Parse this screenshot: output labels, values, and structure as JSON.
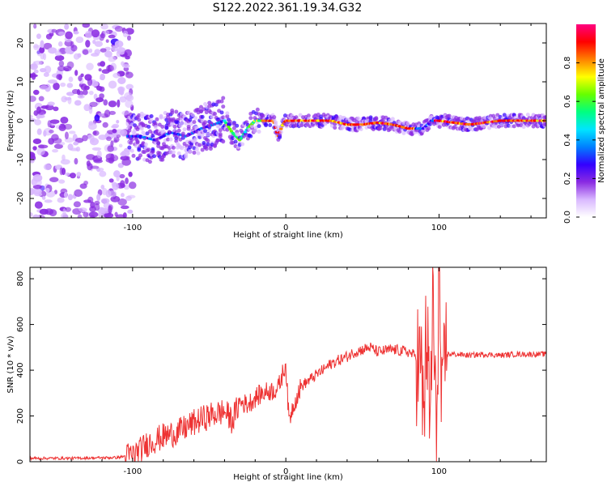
{
  "title": "S122.2022.361.19.34.G32",
  "chart_data": [
    {
      "type": "heatmap",
      "xlabel": "Height of straight line (km)",
      "ylabel": "Frequency (Hz)",
      "xlim": [
        -167,
        170
      ],
      "ylim": [
        -25,
        25
      ],
      "xticks": [
        -100,
        0,
        100
      ],
      "yticks": [
        -20,
        -10,
        0,
        10,
        20
      ],
      "colorbar": {
        "label": "Normalized spectral amplitude",
        "range": [
          0,
          1
        ],
        "ticks": [
          "0.0",
          "0.2",
          "0.4",
          "0.6",
          "0.8"
        ],
        "tick_values": [
          0.0,
          0.2,
          0.4,
          0.6,
          0.8
        ],
        "colormap": [
          "#ffffff",
          "#d9b8ff",
          "#8a2be2",
          "#3300ff",
          "#0080ff",
          "#00e5ff",
          "#00ff80",
          "#66ff00",
          "#ffff00",
          "#ff8000",
          "#ff0000",
          "#ff0080"
        ]
      },
      "ridge_frequency": {
        "x": [
          -103,
          -95,
          -85,
          -75,
          -65,
          -55,
          -47,
          -40,
          -35,
          -30,
          -25,
          -20,
          -15,
          -8,
          -5,
          -2,
          0,
          5,
          15,
          30,
          40,
          50,
          60,
          70,
          80,
          90,
          95,
          100,
          120,
          140,
          170
        ],
        "y": [
          -4,
          -4,
          -5,
          -3,
          -4,
          -2,
          -1,
          0,
          -3,
          -5,
          -2,
          0,
          0,
          0,
          -4,
          -1,
          0,
          0,
          0,
          0,
          -1,
          -1,
          -0.5,
          -1,
          -2,
          -2,
          0,
          0,
          -1,
          0,
          0
        ]
      }
    },
    {
      "type": "line",
      "xlabel": "Height of straight line (km)",
      "ylabel": "SNR (10 * v/v)",
      "xlim": [
        -167,
        170
      ],
      "ylim": [
        0,
        850
      ],
      "xticks": [
        -100,
        0,
        100
      ],
      "yticks": [
        0,
        200,
        400,
        600,
        800
      ],
      "series": [
        {
          "color": "#ee3333",
          "x": [
            -167,
            -140,
            -110,
            -100,
            -95,
            -90,
            -80,
            -70,
            -60,
            -50,
            -40,
            -35,
            -30,
            -25,
            -20,
            -15,
            -10,
            -5,
            0,
            1,
            2,
            5,
            10,
            20,
            30,
            40,
            45,
            50,
            55,
            60,
            70,
            80,
            85,
            88,
            90,
            92,
            94,
            96,
            98,
            100,
            102,
            104,
            106,
            110,
            120,
            130,
            140,
            150,
            160,
            170
          ],
          "y": [
            15,
            15,
            18,
            30,
            50,
            80,
            110,
            130,
            170,
            200,
            220,
            180,
            260,
            250,
            280,
            300,
            310,
            320,
            430,
            300,
            180,
            250,
            330,
            380,
            430,
            460,
            480,
            490,
            500,
            480,
            490,
            480,
            460,
            400,
            200,
            600,
            100,
            750,
            60,
            830,
            100,
            480,
            470,
            470,
            465,
            470,
            465,
            470,
            470,
            470
          ]
        }
      ]
    }
  ]
}
